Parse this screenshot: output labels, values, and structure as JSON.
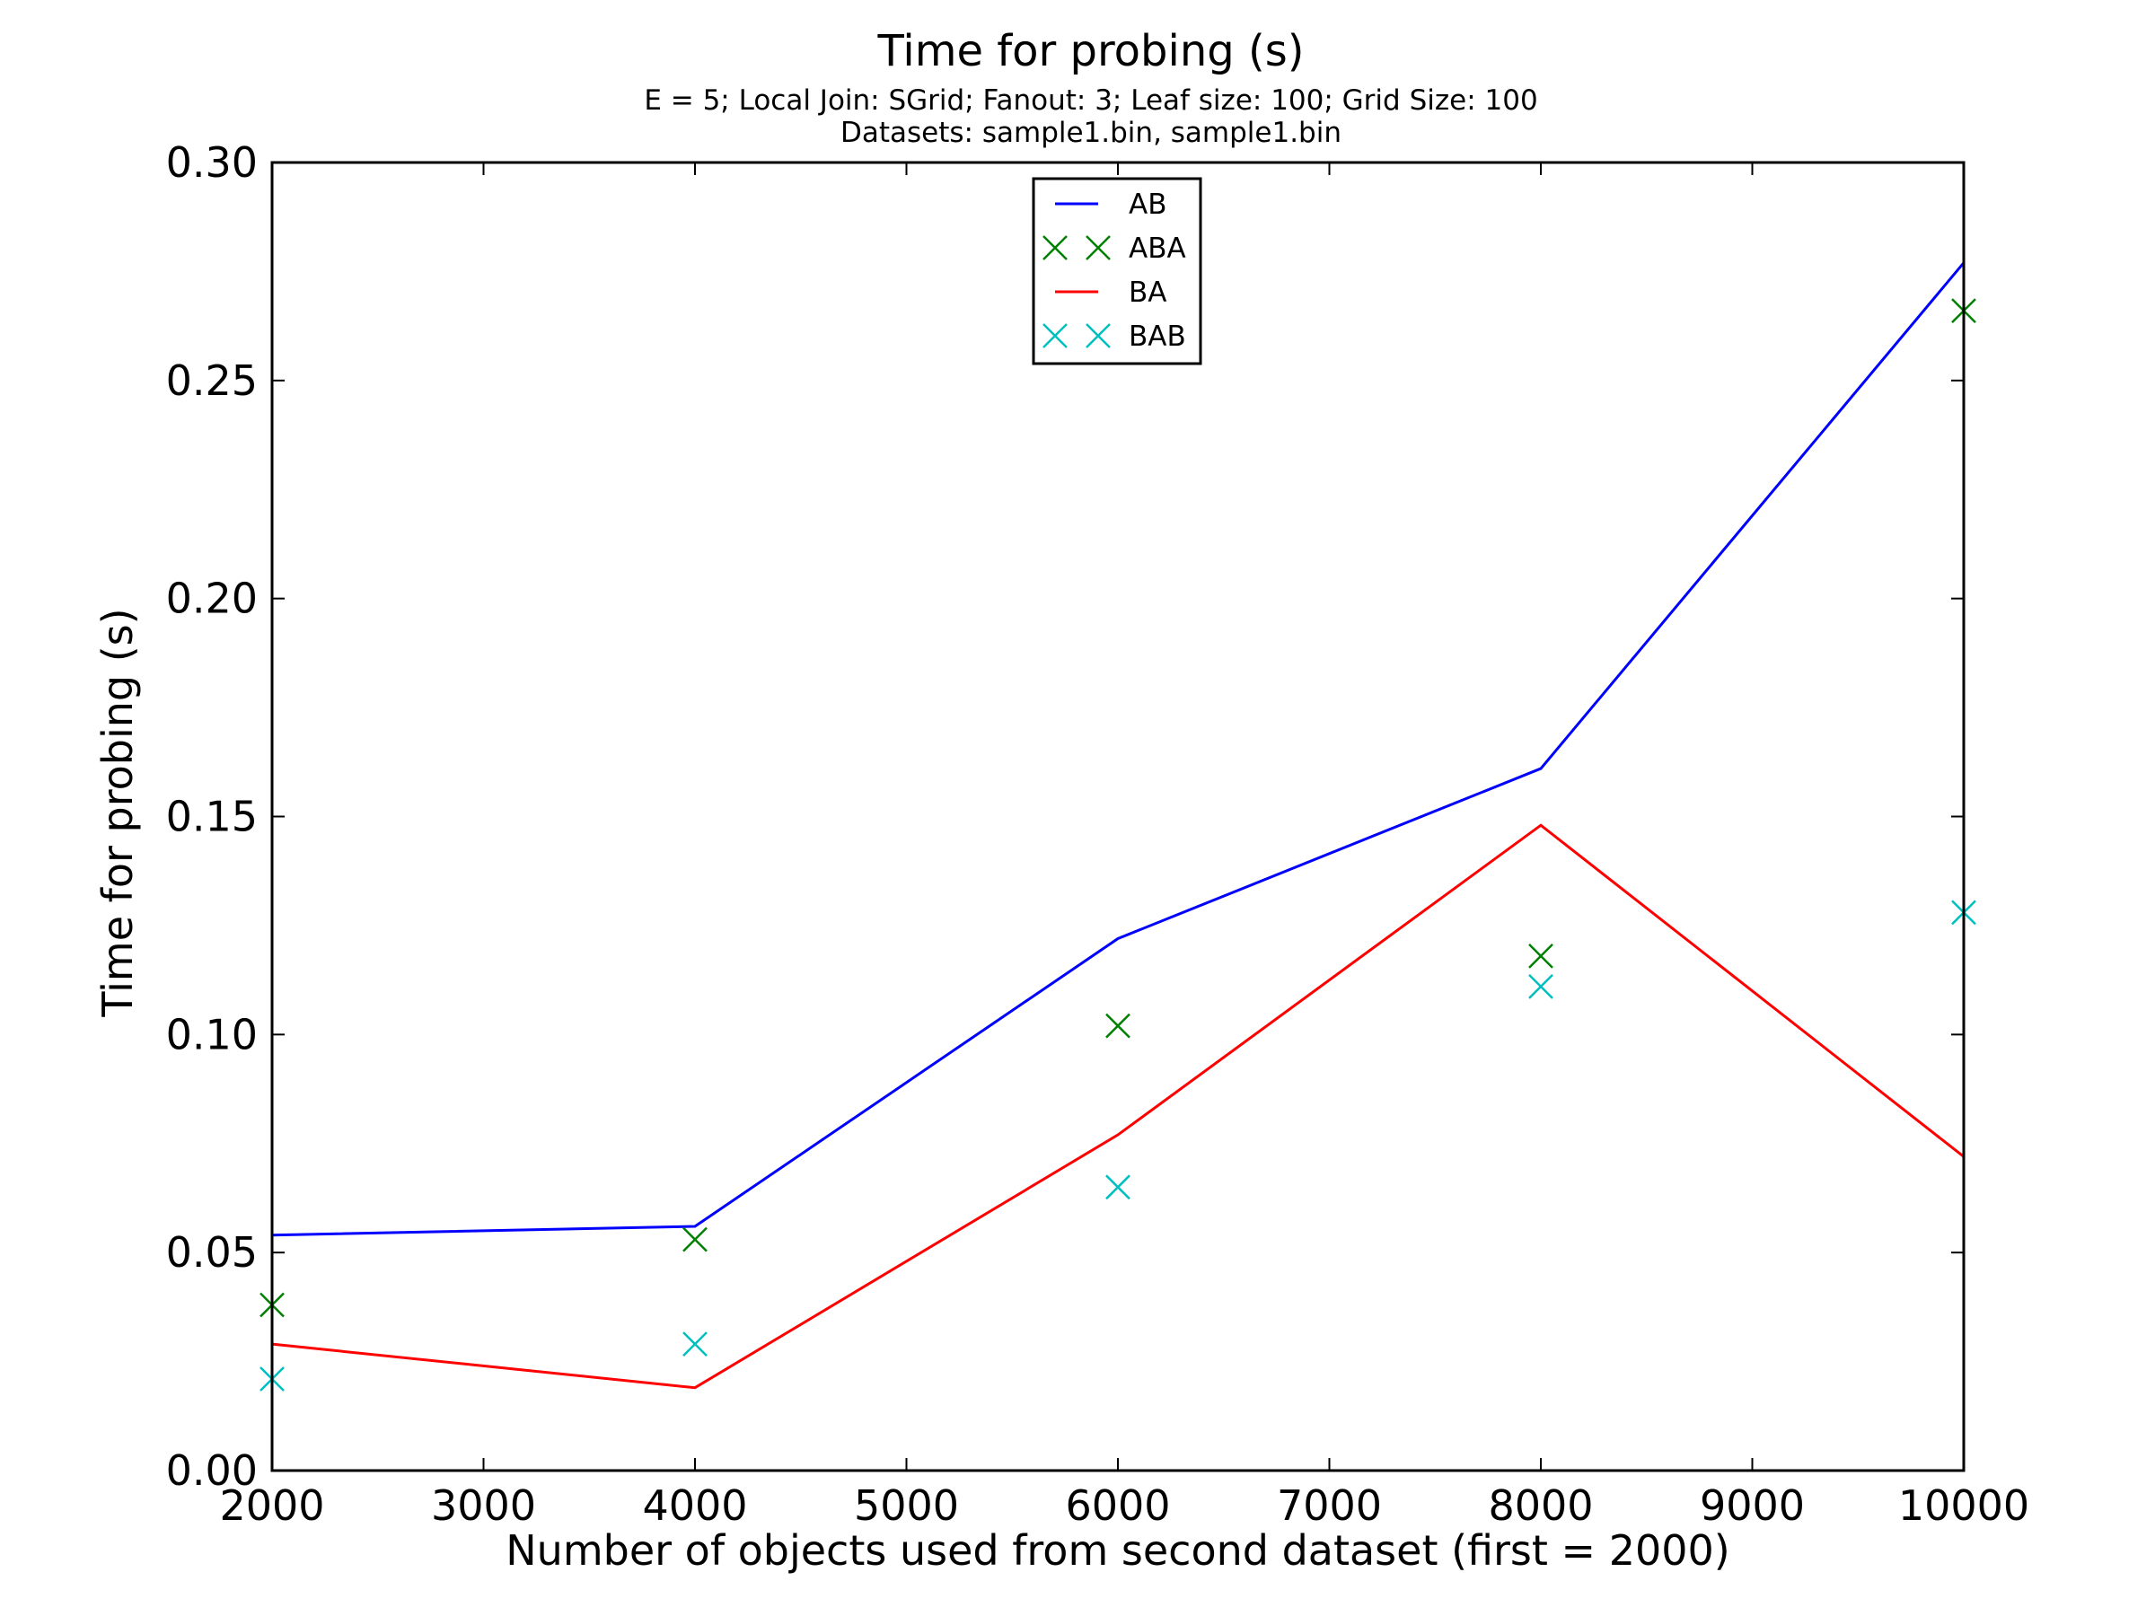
{
  "chart_data": {
    "type": "line",
    "title": "Time for probing (s)",
    "subtitle_lines": [
      "E = 5; Local Join: SGrid; Fanout: 3; Leaf size: 100; Grid Size: 100",
      "Datasets: sample1.bin, sample1.bin"
    ],
    "xlabel": "Number of objects used from second dataset (first = 2000)",
    "ylabel": "Time for probing (s)",
    "xlim": [
      2000,
      10000
    ],
    "ylim": [
      0.0,
      0.3
    ],
    "xticks": [
      2000,
      3000,
      4000,
      5000,
      6000,
      7000,
      8000,
      9000,
      10000
    ],
    "yticks": [
      "0.00",
      "0.05",
      "0.10",
      "0.15",
      "0.20",
      "0.25",
      "0.30"
    ],
    "grid": false,
    "legend_position": "upper-center",
    "x": [
      2000,
      4000,
      6000,
      8000,
      10000
    ],
    "series": [
      {
        "name": "AB",
        "style": "line",
        "color": "#0000ff",
        "values": [
          0.054,
          0.056,
          0.122,
          0.161,
          0.277
        ]
      },
      {
        "name": "ABA",
        "style": "marker",
        "color": "#008000",
        "values": [
          0.038,
          0.053,
          0.102,
          0.118,
          0.266
        ]
      },
      {
        "name": "BA",
        "style": "line",
        "color": "#ff0000",
        "values": [
          0.029,
          0.019,
          0.077,
          0.148,
          0.072
        ]
      },
      {
        "name": "BAB",
        "style": "marker",
        "color": "#00bfbf",
        "values": [
          0.021,
          0.029,
          0.065,
          0.111,
          0.128
        ]
      }
    ]
  }
}
